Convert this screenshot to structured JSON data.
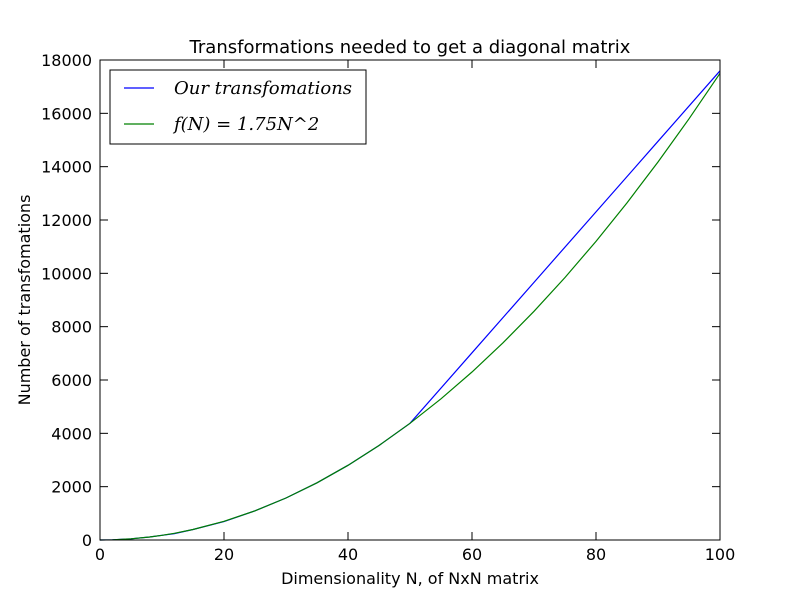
{
  "chart_data": {
    "type": "line",
    "title": "Transformations needed to get a diagonal matrix",
    "xlabel": "Dimensionality N, of NxN matrix",
    "ylabel": "Number of transfomations",
    "xlim": [
      0,
      100
    ],
    "ylim": [
      0,
      18000
    ],
    "xticks": [
      0,
      20,
      40,
      60,
      80,
      100
    ],
    "yticks": [
      0,
      2000,
      4000,
      6000,
      8000,
      10000,
      12000,
      14000,
      16000,
      18000
    ],
    "grid": false,
    "legend_position": "top-left",
    "series": [
      {
        "name": "Our transfomations",
        "color": "#0000ff",
        "x": [
          0,
          2,
          5,
          8,
          10,
          12,
          15,
          20,
          25,
          30,
          35,
          40,
          45,
          50,
          60,
          70,
          80,
          90,
          100
        ],
        "y": [
          0,
          7,
          44,
          112,
          175,
          240,
          394,
          690,
          1094,
          1575,
          2144,
          2800,
          3544,
          4375,
          7019,
          9662,
          12306,
          14950,
          17594
        ]
      },
      {
        "name": "f(N) = 1.75N^2",
        "color": "#008000",
        "x": [
          0,
          2,
          5,
          8,
          10,
          12,
          15,
          20,
          25,
          30,
          35,
          40,
          45,
          50,
          55,
          60,
          65,
          70,
          75,
          80,
          85,
          90,
          95,
          100
        ],
        "y": [
          0,
          7,
          44,
          112,
          175,
          252,
          394,
          700,
          1094,
          1575,
          2144,
          2800,
          3544,
          4375,
          5294,
          6300,
          7394,
          8575,
          9844,
          11200,
          12644,
          14175,
          15794,
          17500
        ]
      }
    ]
  }
}
